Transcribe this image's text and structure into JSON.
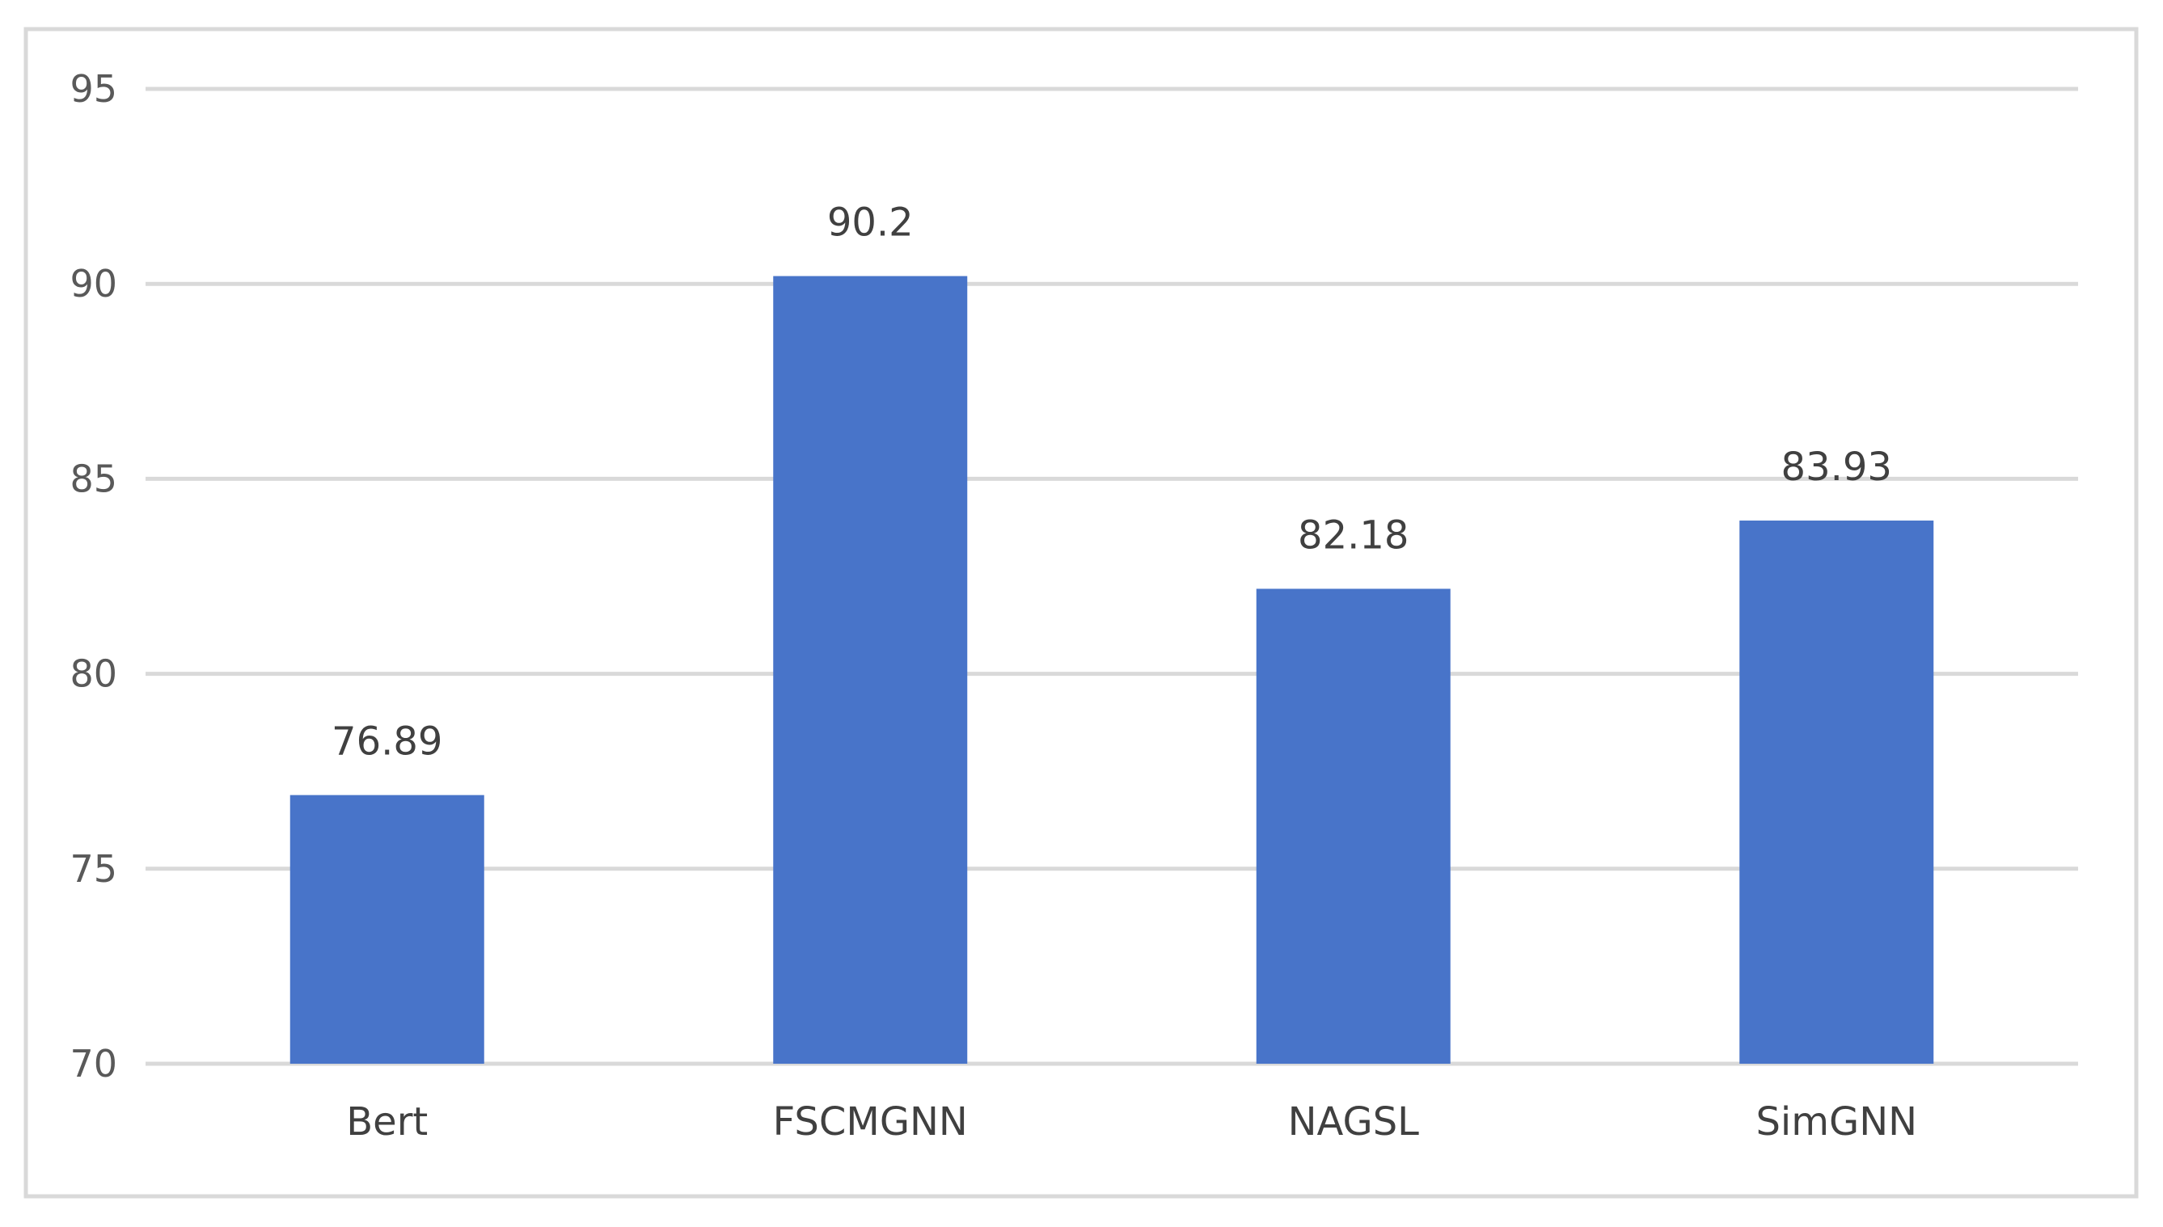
{
  "chart_data": {
    "type": "bar",
    "categories": [
      "Bert",
      "FSCMGNN",
      "NAGSL",
      "SimGNN"
    ],
    "values": [
      76.89,
      90.2,
      82.18,
      83.93
    ],
    "data_labels": [
      "76.89",
      "90.2",
      "82.18",
      "83.93"
    ],
    "y_ticks": [
      70,
      75,
      80,
      85,
      90,
      95
    ],
    "y_tick_labels": [
      "70",
      "75",
      "80",
      "85",
      "90",
      "95"
    ],
    "ylim": [
      70,
      95
    ],
    "title": "",
    "xlabel": "",
    "ylabel": "",
    "grid": true,
    "legend": "none",
    "colors": {
      "bar": "#4874C9",
      "grid": "#D9D9D9",
      "frame": "#D9D9D9",
      "axis_text": "#595959",
      "label_text": "#404040"
    }
  }
}
